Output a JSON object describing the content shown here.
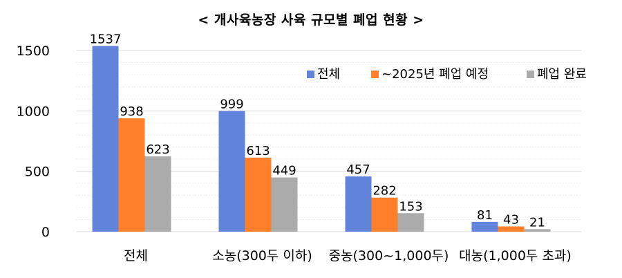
{
  "chart_data": {
    "type": "bar",
    "title": "< 개사육농장 사육 규모별 폐업 현황 >",
    "categories": [
      "전체",
      "소농(300두 이하)",
      "중농(300~1,000두)",
      "대농(1,000두 초과)"
    ],
    "series": [
      {
        "name": "전체",
        "values": [
          1537,
          999,
          457,
          81
        ],
        "color": "#6183D9"
      },
      {
        "name": "~2025년 폐업 예정",
        "values": [
          938,
          613,
          282,
          43
        ],
        "color": "#FF7F2A"
      },
      {
        "name": "폐업 완료",
        "values": [
          623,
          449,
          153,
          21
        ],
        "color": "#ABABAB"
      }
    ],
    "ylim": [
      0,
      1500
    ],
    "yticks": [
      0,
      500,
      1000,
      1500
    ],
    "grid": true,
    "legend": "top-right",
    "xlabel": "",
    "ylabel": ""
  }
}
